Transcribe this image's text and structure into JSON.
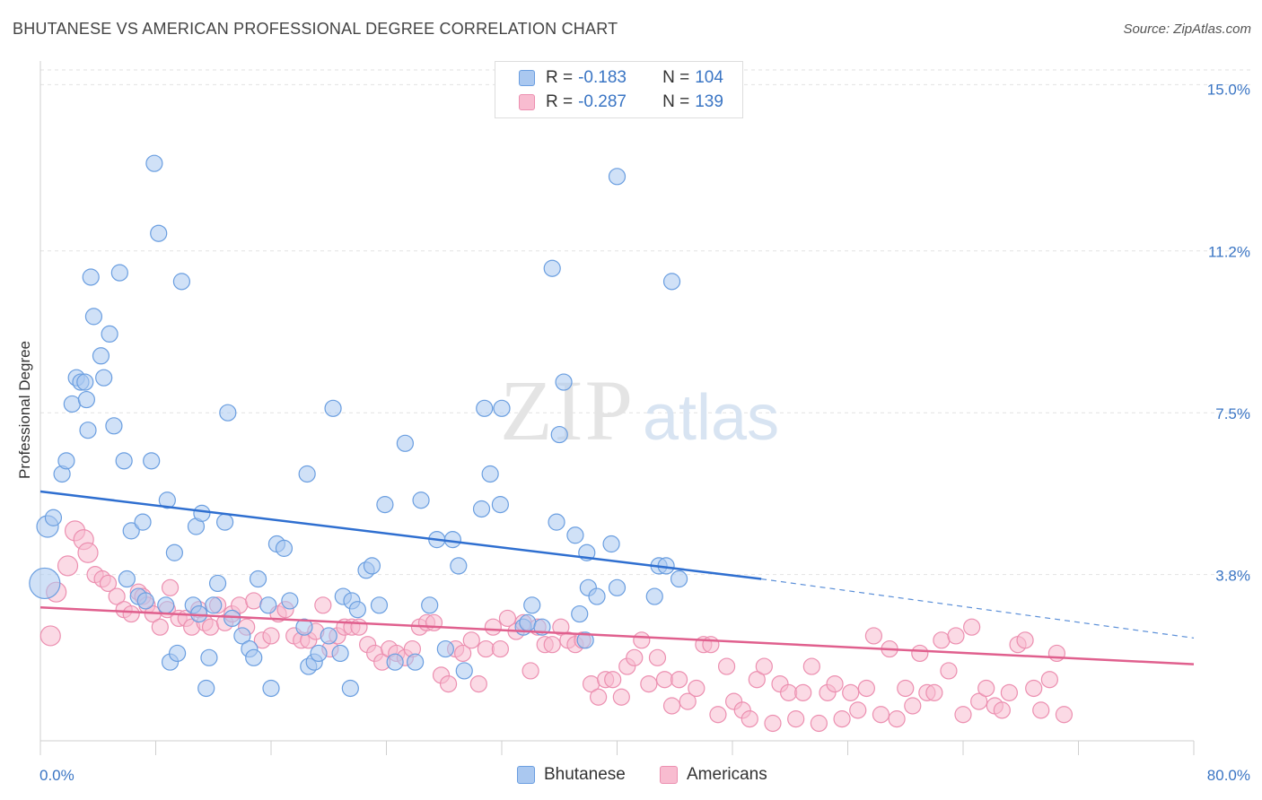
{
  "title": "BHUTANESE VS AMERICAN PROFESSIONAL DEGREE CORRELATION CHART",
  "source": "Source: ZipAtlas.com",
  "watermark": {
    "zip": "ZIP",
    "atlas": "atlas"
  },
  "legend_stats": [
    {
      "r_label": "R =",
      "r_value": "-0.183",
      "n_label": "N =",
      "n_value": "104",
      "fill": "#aac8f0",
      "stroke": "#6a9ee0"
    },
    {
      "r_label": "R =",
      "r_value": "-0.287",
      "n_label": "N =",
      "n_value": "139",
      "fill": "#f8bcd0",
      "stroke": "#ec8fb0"
    }
  ],
  "bottom_legend": [
    {
      "label": "Bhutanese",
      "fill": "#aac8f0",
      "stroke": "#6a9ee0"
    },
    {
      "label": "Americans",
      "fill": "#f8bcd0",
      "stroke": "#ec8fb0"
    }
  ],
  "chart_data": {
    "type": "scatter",
    "title": "BHUTANESE VS AMERICAN PROFESSIONAL DEGREE CORRELATION CHART",
    "xlabel": "",
    "ylabel": "Professional Degree",
    "xlim": [
      0,
      80
    ],
    "ylim": [
      0,
      15.5
    ],
    "x_tick_labels": [
      "0.0%",
      "80.0%"
    ],
    "y_ticks": [
      3.8,
      7.5,
      11.2,
      15.0
    ],
    "y_tick_labels": [
      "3.8%",
      "7.5%",
      "11.2%",
      "15.0%"
    ],
    "grid": true,
    "legend_placement": "top-center",
    "series": [
      {
        "name": "Bhutanese",
        "color": "#6a9ee0",
        "fill": "#aac8f0",
        "trend": {
          "x0": 0,
          "y0": 5.7,
          "x1": 50,
          "y1": 3.7,
          "dash_x1": 80,
          "dash_y1": 2.35
        },
        "points": [
          [
            0.3,
            3.6
          ],
          [
            0.5,
            4.9
          ],
          [
            0.9,
            5.1
          ],
          [
            1.5,
            6.1
          ],
          [
            1.8,
            6.4
          ],
          [
            2.2,
            7.7
          ],
          [
            2.5,
            8.3
          ],
          [
            2.8,
            8.2
          ],
          [
            3.1,
            8.2
          ],
          [
            3.2,
            7.8
          ],
          [
            3.3,
            7.1
          ],
          [
            3.5,
            10.6
          ],
          [
            3.7,
            9.7
          ],
          [
            4.2,
            8.8
          ],
          [
            4.4,
            8.3
          ],
          [
            4.8,
            9.3
          ],
          [
            5.1,
            7.2
          ],
          [
            5.5,
            10.7
          ],
          [
            5.8,
            6.4
          ],
          [
            6.0,
            3.7
          ],
          [
            6.3,
            4.8
          ],
          [
            6.8,
            3.3
          ],
          [
            7.1,
            5.0
          ],
          [
            7.3,
            3.2
          ],
          [
            7.7,
            6.4
          ],
          [
            7.9,
            13.2
          ],
          [
            8.2,
            11.6
          ],
          [
            8.7,
            3.1
          ],
          [
            8.8,
            5.5
          ],
          [
            9.0,
            1.8
          ],
          [
            9.3,
            4.3
          ],
          [
            9.5,
            2.0
          ],
          [
            9.8,
            10.5
          ],
          [
            10.6,
            3.1
          ],
          [
            10.8,
            4.9
          ],
          [
            11.0,
            2.9
          ],
          [
            11.2,
            5.2
          ],
          [
            11.5,
            1.2
          ],
          [
            11.7,
            1.9
          ],
          [
            12.0,
            3.1
          ],
          [
            12.3,
            3.6
          ],
          [
            12.8,
            5.0
          ],
          [
            13.0,
            7.5
          ],
          [
            13.3,
            2.8
          ],
          [
            14.0,
            2.4
          ],
          [
            14.5,
            2.1
          ],
          [
            14.8,
            1.9
          ],
          [
            15.8,
            3.1
          ],
          [
            15.1,
            3.7
          ],
          [
            16.0,
            1.2
          ],
          [
            16.4,
            4.5
          ],
          [
            16.9,
            4.4
          ],
          [
            17.3,
            3.2
          ],
          [
            18.5,
            6.1
          ],
          [
            18.3,
            2.6
          ],
          [
            18.6,
            1.7
          ],
          [
            19.0,
            1.8
          ],
          [
            19.3,
            2.0
          ],
          [
            20.0,
            2.4
          ],
          [
            20.3,
            7.6
          ],
          [
            20.8,
            2.0
          ],
          [
            21.0,
            3.3
          ],
          [
            21.5,
            1.2
          ],
          [
            21.6,
            3.2
          ],
          [
            22.0,
            3.0
          ],
          [
            22.6,
            3.9
          ],
          [
            23.0,
            4.0
          ],
          [
            23.5,
            3.1
          ],
          [
            23.9,
            5.4
          ],
          [
            24.6,
            1.8
          ],
          [
            25.3,
            6.8
          ],
          [
            26.0,
            1.8
          ],
          [
            26.4,
            5.5
          ],
          [
            27.0,
            3.1
          ],
          [
            27.5,
            4.6
          ],
          [
            28.1,
            2.1
          ],
          [
            28.6,
            4.6
          ],
          [
            29.0,
            4.0
          ],
          [
            29.4,
            1.6
          ],
          [
            30.6,
            5.3
          ],
          [
            30.8,
            7.6
          ],
          [
            31.2,
            6.1
          ],
          [
            31.9,
            5.4
          ],
          [
            32.0,
            7.6
          ],
          [
            33.5,
            2.6
          ],
          [
            33.8,
            2.7
          ],
          [
            34.1,
            3.1
          ],
          [
            34.8,
            2.6
          ],
          [
            35.5,
            10.8
          ],
          [
            35.8,
            5.0
          ],
          [
            36.0,
            7.0
          ],
          [
            36.3,
            8.2
          ],
          [
            37.1,
            4.7
          ],
          [
            37.4,
            2.9
          ],
          [
            37.8,
            2.3
          ],
          [
            37.9,
            4.3
          ],
          [
            38.0,
            3.5
          ],
          [
            38.6,
            3.3
          ],
          [
            39.6,
            4.5
          ],
          [
            40.0,
            3.5
          ],
          [
            40.0,
            12.9
          ],
          [
            42.6,
            3.3
          ],
          [
            42.9,
            4.0
          ],
          [
            43.4,
            4.0
          ],
          [
            43.8,
            10.5
          ],
          [
            44.3,
            3.7
          ]
        ]
      },
      {
        "name": "Americans",
        "color": "#ec8fb0",
        "fill": "#f8bcd0",
        "trend": {
          "x0": 0,
          "y0": 3.05,
          "x1": 80,
          "y1": 1.75
        },
        "points": [
          [
            0.7,
            2.4
          ],
          [
            1.1,
            3.4
          ],
          [
            1.9,
            4.0
          ],
          [
            2.4,
            4.8
          ],
          [
            3.0,
            4.6
          ],
          [
            3.3,
            4.3
          ],
          [
            3.8,
            3.8
          ],
          [
            4.3,
            3.7
          ],
          [
            4.7,
            3.6
          ],
          [
            5.3,
            3.3
          ],
          [
            5.8,
            3.0
          ],
          [
            6.3,
            2.9
          ],
          [
            6.8,
            3.4
          ],
          [
            7.1,
            3.3
          ],
          [
            7.4,
            3.1
          ],
          [
            7.8,
            2.9
          ],
          [
            8.3,
            2.6
          ],
          [
            8.8,
            3.0
          ],
          [
            9.0,
            3.5
          ],
          [
            9.6,
            2.8
          ],
          [
            10.1,
            2.8
          ],
          [
            10.5,
            2.6
          ],
          [
            11.0,
            3.0
          ],
          [
            11.4,
            2.7
          ],
          [
            11.8,
            2.6
          ],
          [
            12.3,
            3.1
          ],
          [
            12.8,
            2.7
          ],
          [
            13.3,
            2.9
          ],
          [
            13.8,
            3.1
          ],
          [
            14.3,
            2.6
          ],
          [
            14.8,
            3.2
          ],
          [
            15.4,
            2.3
          ],
          [
            16.0,
            2.4
          ],
          [
            16.5,
            2.9
          ],
          [
            17.0,
            3.0
          ],
          [
            17.6,
            2.4
          ],
          [
            18.1,
            2.3
          ],
          [
            18.6,
            2.3
          ],
          [
            19.1,
            2.5
          ],
          [
            19.6,
            3.1
          ],
          [
            20.1,
            2.1
          ],
          [
            20.6,
            2.4
          ],
          [
            21.1,
            2.6
          ],
          [
            21.6,
            2.6
          ],
          [
            22.1,
            2.6
          ],
          [
            22.7,
            2.2
          ],
          [
            23.2,
            2.0
          ],
          [
            23.7,
            1.8
          ],
          [
            24.2,
            2.1
          ],
          [
            24.7,
            2.0
          ],
          [
            25.3,
            1.9
          ],
          [
            25.8,
            2.1
          ],
          [
            26.3,
            2.6
          ],
          [
            26.8,
            2.7
          ],
          [
            27.3,
            2.7
          ],
          [
            27.8,
            1.5
          ],
          [
            28.3,
            1.3
          ],
          [
            28.8,
            2.1
          ],
          [
            29.3,
            2.0
          ],
          [
            29.9,
            2.3
          ],
          [
            30.4,
            1.3
          ],
          [
            30.9,
            2.1
          ],
          [
            31.4,
            2.6
          ],
          [
            31.9,
            2.1
          ],
          [
            32.4,
            2.8
          ],
          [
            33.0,
            2.5
          ],
          [
            33.5,
            2.7
          ],
          [
            34.0,
            1.6
          ],
          [
            34.5,
            2.6
          ],
          [
            35.0,
            2.2
          ],
          [
            35.5,
            2.2
          ],
          [
            36.1,
            2.6
          ],
          [
            36.6,
            2.3
          ],
          [
            37.1,
            2.2
          ],
          [
            37.6,
            2.3
          ],
          [
            38.2,
            1.3
          ],
          [
            38.7,
            1.0
          ],
          [
            39.2,
            1.4
          ],
          [
            39.7,
            1.4
          ],
          [
            40.3,
            1.0
          ],
          [
            40.7,
            1.7
          ],
          [
            41.2,
            1.9
          ],
          [
            41.7,
            2.3
          ],
          [
            42.2,
            1.3
          ],
          [
            42.8,
            1.9
          ],
          [
            43.3,
            1.4
          ],
          [
            43.8,
            0.8
          ],
          [
            44.3,
            1.4
          ],
          [
            44.9,
            0.9
          ],
          [
            45.5,
            1.2
          ],
          [
            46.0,
            2.2
          ],
          [
            46.5,
            2.2
          ],
          [
            47.0,
            0.6
          ],
          [
            47.6,
            1.7
          ],
          [
            48.1,
            0.9
          ],
          [
            48.7,
            0.7
          ],
          [
            49.2,
            0.5
          ],
          [
            49.7,
            1.4
          ],
          [
            50.2,
            1.7
          ],
          [
            50.8,
            0.4
          ],
          [
            51.3,
            1.3
          ],
          [
            51.9,
            1.1
          ],
          [
            52.4,
            0.5
          ],
          [
            52.9,
            1.1
          ],
          [
            53.5,
            1.7
          ],
          [
            54.0,
            0.4
          ],
          [
            54.6,
            1.1
          ],
          [
            55.1,
            1.3
          ],
          [
            55.6,
            0.5
          ],
          [
            56.2,
            1.1
          ],
          [
            56.7,
            0.7
          ],
          [
            57.3,
            1.2
          ],
          [
            57.8,
            2.4
          ],
          [
            58.3,
            0.6
          ],
          [
            58.9,
            2.1
          ],
          [
            59.4,
            0.5
          ],
          [
            60.0,
            1.2
          ],
          [
            60.5,
            0.8
          ],
          [
            61.0,
            2.0
          ],
          [
            61.5,
            1.1
          ],
          [
            62.0,
            1.1
          ],
          [
            62.5,
            2.3
          ],
          [
            63.0,
            1.6
          ],
          [
            63.5,
            2.4
          ],
          [
            64.0,
            0.6
          ],
          [
            64.6,
            2.6
          ],
          [
            65.1,
            0.9
          ],
          [
            65.6,
            1.2
          ],
          [
            66.2,
            0.8
          ],
          [
            66.7,
            0.7
          ],
          [
            67.2,
            1.1
          ],
          [
            67.8,
            2.2
          ],
          [
            68.3,
            2.3
          ],
          [
            68.9,
            1.2
          ],
          [
            69.4,
            0.7
          ],
          [
            70.0,
            1.4
          ],
          [
            70.5,
            2.0
          ],
          [
            71.0,
            0.6
          ]
        ]
      }
    ]
  }
}
